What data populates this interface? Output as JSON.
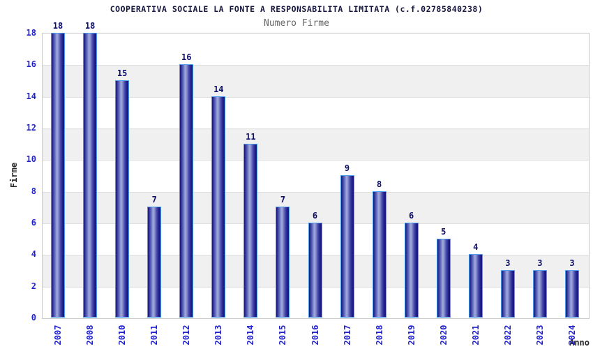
{
  "header": {
    "title": "COOPERATIVA SOCIALE LA FONTE A RESPONSABILITA LIMITATA (c.f.02785840238)",
    "subtitle": "Numero Firme"
  },
  "chart_data": {
    "type": "bar",
    "title": "Numero Firme",
    "categories": [
      "2007",
      "2008",
      "2010",
      "2011",
      "2012",
      "2013",
      "2014",
      "2015",
      "2016",
      "2017",
      "2018",
      "2019",
      "2020",
      "2021",
      "2022",
      "2023",
      "2024"
    ],
    "values": [
      18,
      18,
      15,
      7,
      16,
      14,
      11,
      7,
      6,
      9,
      8,
      6,
      5,
      4,
      3,
      3,
      3
    ],
    "xlabel": "Anno",
    "ylabel": "Firme",
    "ylim": [
      0,
      18
    ],
    "ytick_step": 2,
    "yticks": [
      0,
      2,
      4,
      6,
      8,
      10,
      12,
      14,
      16,
      18
    ],
    "bar_value_labels_shown": true,
    "legend": "none",
    "grid": "horizontal bands every 2 units, alternating white and light gray",
    "colors": {
      "bar_border": "#4a9ded",
      "bar_dark": "#14146e",
      "bar_light": "#a2abdb",
      "tick_label": "#2323cd",
      "value_label": "#0d0d6b",
      "band_gray": "#f0f0f0",
      "band_white": "#ffffff",
      "gridline": "#dfdfdf",
      "plot_border": "#c9c9c9",
      "title": "#15153d",
      "subtitle": "#666666"
    }
  }
}
